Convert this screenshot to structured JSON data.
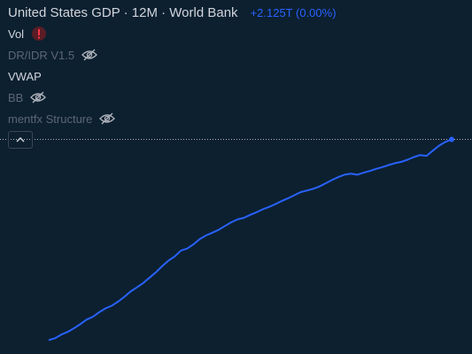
{
  "legend": {
    "title": "United States GDP · 12M · World Bank",
    "change": "+2.125T (0.00%)",
    "indicators": [
      "Vol",
      "DR/IDR V1.5",
      "VWAP",
      "BB",
      "mentfx Structure"
    ]
  },
  "chart_data": {
    "type": "line",
    "log_scale": true,
    "x": [
      1960,
      1961,
      1962,
      1963,
      1964,
      1965,
      1966,
      1967,
      1968,
      1969,
      1970,
      1971,
      1972,
      1973,
      1974,
      1975,
      1976,
      1977,
      1978,
      1979,
      1980,
      1981,
      1982,
      1983,
      1984,
      1985,
      1986,
      1987,
      1988,
      1989,
      1990,
      1991,
      1992,
      1993,
      1994,
      1995,
      1996,
      1997,
      1998,
      1999,
      2000,
      2001,
      2002,
      2003,
      2004,
      2005,
      2006,
      2007,
      2008,
      2009,
      2010,
      2011,
      2012,
      2013,
      2014,
      2015,
      2016,
      2017,
      2018,
      2019,
      2020,
      2021,
      2022,
      2023,
      2024
    ],
    "xlim": [
      1960,
      2024
    ],
    "ylim": [
      0.5,
      30.5
    ],
    "series": [
      {
        "color": "#2962ff",
        "values": [
          0.543,
          0.563,
          0.605,
          0.638,
          0.686,
          0.744,
          0.815,
          0.862,
          0.943,
          1.019,
          1.073,
          1.165,
          1.279,
          1.425,
          1.545,
          1.684,
          1.873,
          2.082,
          2.352,
          2.627,
          2.857,
          3.207,
          3.343,
          3.634,
          4.037,
          4.339,
          4.58,
          4.855,
          5.236,
          5.642,
          5.963,
          6.158,
          6.52,
          6.859,
          7.287,
          7.64,
          8.073,
          8.578,
          9.063,
          9.631,
          10.251,
          10.582,
          10.929,
          11.457,
          12.217,
          13.039,
          13.816,
          14.474,
          14.77,
          14.478,
          15.049,
          15.6,
          16.254,
          16.843,
          17.551,
          18.206,
          18.695,
          19.477,
          20.533,
          21.381,
          21.06,
          23.315,
          25.744,
          27.721,
          29.185
        ]
      }
    ]
  }
}
